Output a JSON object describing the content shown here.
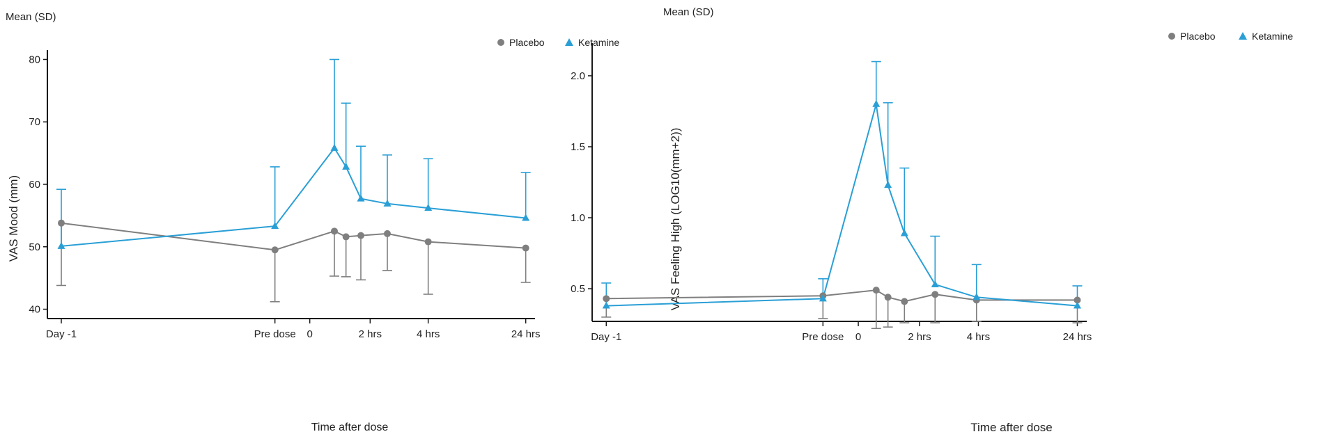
{
  "colors": {
    "placebo": "#7f7f7f",
    "ketamine": "#2a9fd6",
    "axis": "#1a1a1a"
  },
  "chart_data": [
    {
      "type": "line",
      "mean_label": "Mean (SD)",
      "xlabel": "Time after dose",
      "ylabel": "VAS Mood (mm)",
      "ylim": [
        38.5,
        81.5
      ],
      "yticks": [
        40,
        50,
        60,
        70,
        80
      ],
      "ytick_labels": [
        "40",
        "50",
        "60",
        "70",
        "80"
      ],
      "xlim": [
        -0.03,
        1.02
      ],
      "xticks": [
        {
          "x": 0.0,
          "label": "Day -1"
        },
        {
          "x": 0.46,
          "label": "Pre dose"
        },
        {
          "x": 0.535,
          "label": "0"
        },
        {
          "x": 0.665,
          "label": "2 hrs"
        },
        {
          "x": 0.79,
          "label": "4 hrs"
        },
        {
          "x": 1.0,
          "label": "24 hrs"
        }
      ],
      "legend": [
        "Placebo",
        "Ketamine"
      ],
      "series": [
        {
          "name": "Placebo",
          "marker": "circle",
          "err_dir": "down",
          "x": [
            0.0,
            0.46,
            0.588,
            0.613,
            0.645,
            0.702,
            0.79,
            1.0
          ],
          "y": [
            53.8,
            49.5,
            52.5,
            51.6,
            51.8,
            52.1,
            50.8,
            49.8
          ],
          "sd": [
            10.0,
            8.3,
            7.2,
            6.4,
            7.1,
            5.9,
            8.4,
            5.5
          ]
        },
        {
          "name": "Ketamine",
          "marker": "triangle",
          "err_dir": "up",
          "x": [
            0.0,
            0.46,
            0.588,
            0.613,
            0.645,
            0.702,
            0.79,
            1.0
          ],
          "y": [
            50.1,
            53.3,
            65.8,
            62.8,
            57.7,
            56.9,
            56.2,
            54.6
          ],
          "sd": [
            9.1,
            9.5,
            14.2,
            10.2,
            8.4,
            7.8,
            7.9,
            7.3
          ]
        }
      ]
    },
    {
      "type": "line",
      "mean_label": "Mean (SD)",
      "xlabel": "Time after dose",
      "ylabel": "VAS Feeling High (LOG10(mm+2))",
      "ylim": [
        0.27,
        2.23
      ],
      "yticks": [
        0.5,
        1.0,
        1.5,
        2.0
      ],
      "ytick_labels": [
        "0.5",
        "1.0",
        "1.5",
        "2.0"
      ],
      "xlim": [
        -0.03,
        1.02
      ],
      "xticks": [
        {
          "x": 0.0,
          "label": "Day -1"
        },
        {
          "x": 0.46,
          "label": "Pre dose"
        },
        {
          "x": 0.535,
          "label": "0"
        },
        {
          "x": 0.665,
          "label": "2 hrs"
        },
        {
          "x": 0.79,
          "label": "4 hrs"
        },
        {
          "x": 1.0,
          "label": "24 hrs"
        }
      ],
      "legend": [
        "Placebo",
        "Ketamine"
      ],
      "series": [
        {
          "name": "Placebo",
          "marker": "circle",
          "err_dir": "down",
          "x": [
            0.0,
            0.46,
            0.573,
            0.598,
            0.633,
            0.698,
            0.786,
            1.0
          ],
          "y": [
            0.43,
            0.45,
            0.49,
            0.44,
            0.41,
            0.46,
            0.42,
            0.42
          ],
          "sd": [
            0.13,
            0.16,
            0.27,
            0.21,
            0.15,
            0.2,
            0.15,
            0.16
          ]
        },
        {
          "name": "Ketamine",
          "marker": "triangle",
          "err_dir": "up",
          "x": [
            0.0,
            0.46,
            0.573,
            0.598,
            0.633,
            0.698,
            0.786,
            1.0
          ],
          "y": [
            0.38,
            0.43,
            1.8,
            1.23,
            0.89,
            0.53,
            0.44,
            0.38
          ],
          "sd": [
            0.16,
            0.14,
            0.3,
            0.58,
            0.46,
            0.34,
            0.23,
            0.14
          ]
        }
      ]
    }
  ]
}
